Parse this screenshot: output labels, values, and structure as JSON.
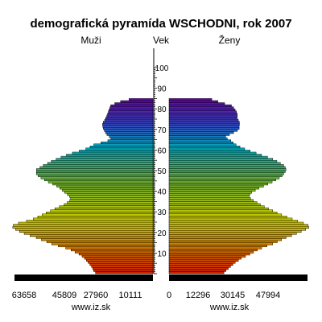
{
  "chart_data": {
    "type": "bar",
    "title": "demografická pyramída WSCHODNI, rok 2007",
    "left_label": "Muži",
    "center_label": "Vek",
    "right_label": "Ženy",
    "age_ticks": [
      10,
      20,
      30,
      40,
      50,
      60,
      70,
      80,
      90,
      100
    ],
    "left_axis_ticks": [
      "63658",
      "45809",
      "27960",
      "10111"
    ],
    "center_axis_tick": "0",
    "right_axis_ticks": [
      "12296",
      "30145",
      "47994"
    ],
    "left_source": "www.iz.sk",
    "right_source": "www.iz.sk",
    "age_range": [
      0,
      100
    ],
    "x_max": 63658,
    "series": [
      {
        "name": "Muži",
        "values": [
          26430,
          27270,
          27700,
          28270,
          29000,
          29820,
          30640,
          31490,
          32580,
          34010,
          35840,
          37650,
          40130,
          43540,
          46590,
          48820,
          51280,
          53670,
          56480,
          59200,
          61300,
          63170,
          64450,
          64200,
          61850,
          58160,
          55040,
          52960,
          50960,
          49110,
          47110,
          45110,
          42990,
          40860,
          39400,
          38260,
          37900,
          38390,
          39370,
          40670,
          41690,
          42800,
          44250,
          46100,
          48110,
          49880,
          51490,
          52800,
          53600,
          53550,
          53560,
          51980,
          50440,
          48460,
          46710,
          44560,
          42270,
          39810,
          37050,
          33890,
          30880,
          28910,
          27180,
          23920,
          20740,
          19390,
          20090,
          21160,
          21830,
          22370,
          22820,
          23090,
          23160,
          22840,
          22200,
          21700,
          21250,
          20870,
          20520,
          20180,
          19810,
          19430,
          17570,
          14890,
          11020,
          0,
          0,
          0,
          0,
          0,
          0,
          0,
          0,
          0,
          0,
          0,
          0,
          0,
          0,
          0,
          0
        ]
      },
      {
        "name": "Ženy",
        "values": [
          25220,
          26160,
          27210,
          28280,
          29360,
          30430,
          31880,
          33170,
          35140,
          37140,
          38820,
          40580,
          42580,
          45020,
          47670,
          49750,
          51730,
          53800,
          56310,
          58610,
          60760,
          62810,
          64250,
          63870,
          61800,
          59140,
          56630,
          54160,
          51770,
          49660,
          47660,
          45740,
          43810,
          41990,
          40410,
          38770,
          37430,
          36740,
          37190,
          38000,
          39650,
          41320,
          43440,
          45400,
          47390,
          49140,
          50690,
          51970,
          52730,
          53420,
          53740,
          53450,
          52700,
          51200,
          49570,
          47670,
          45290,
          42540,
          40020,
          37300,
          34760,
          32600,
          30800,
          29520,
          28420,
          26760,
          26020,
          27770,
          29700,
          31430,
          32230,
          32240,
          32380,
          32350,
          31840,
          31280,
          31380,
          31310,
          30960,
          30370,
          29670,
          28690,
          25570,
          22460,
          19670,
          0,
          0,
          0,
          0,
          0,
          0,
          0,
          0,
          0,
          0,
          0,
          0,
          0,
          0,
          0,
          0
        ]
      }
    ],
    "colors": {
      "bar_outline": "#000000",
      "axis_line": "#000000",
      "gradient_bottom": "#cc2200",
      "gradient_mid": "#66aa33",
      "gradient_top": "#6600aa"
    }
  }
}
